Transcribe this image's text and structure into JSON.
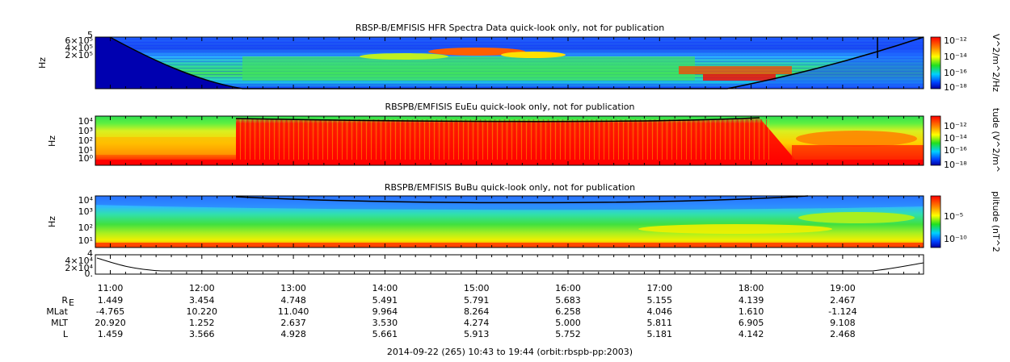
{
  "panels": [
    {
      "title": "RBSP-B/EMFISIS  HFR Spectra Data quick-look only, not for publication",
      "ylabel": "Hz",
      "yticks": [
        "6×10⁵",
        "4×10⁵",
        "2×10⁵"
      ],
      "top_tick": "5",
      "colorbar_label": "V^2/m^2/Hz",
      "colorbar_ticks": [
        "10⁻¹²",
        "10⁻¹⁴",
        "10⁻¹⁶",
        "10⁻¹⁸"
      ]
    },
    {
      "title": "RBSPB/EMFISIS  EuEu quick-look only, not for publication",
      "ylabel": "Hz",
      "yticks": [
        "10⁴",
        "10³",
        "10²",
        "10¹",
        "10⁰"
      ],
      "colorbar_label": "tude (V^2/m^",
      "colorbar_ticks": [
        "10⁻¹²",
        "10⁻¹⁴",
        "10⁻¹⁶",
        "10⁻¹⁸"
      ]
    },
    {
      "title": "RBSPB/EMFISIS  BuBu quick-look only, not for publication",
      "ylabel": "Hz",
      "yticks": [
        "10⁴",
        "10³",
        "10²",
        "10¹"
      ],
      "colorbar_label": "plitude (nT^2",
      "colorbar_ticks": [
        "10⁻⁵",
        "10⁻¹⁰"
      ]
    },
    {
      "yticks": [
        "4×10⁴",
        "2×10⁴",
        "0."
      ],
      "top_tick": "4"
    }
  ],
  "chart_data": {
    "type": "heatmap",
    "x_time_ticks": [
      "11:00",
      "12:00",
      "13:00",
      "14:00",
      "15:00",
      "16:00",
      "17:00",
      "18:00",
      "19:00"
    ],
    "ephemeris": {
      "labels": [
        "R",
        "MLat",
        "MLT",
        "L"
      ],
      "r_subscript": "E",
      "rows": [
        [
          "1.449",
          "3.454",
          "4.748",
          "5.491",
          "5.791",
          "5.683",
          "5.155",
          "4.139",
          "2.467"
        ],
        [
          "-4.765",
          "10.220",
          "11.040",
          "9.964",
          "8.264",
          "6.258",
          "4.046",
          "1.610",
          "-1.124"
        ],
        [
          "20.920",
          "1.252",
          "2.637",
          "3.530",
          "4.274",
          "5.000",
          "5.811",
          "6.905",
          "9.108"
        ],
        [
          "1.459",
          "3.566",
          "4.928",
          "5.661",
          "5.913",
          "5.752",
          "5.181",
          "4.142",
          "2.468"
        ]
      ]
    },
    "footer": "2014-09-22 (265) 10:43 to 19:44 (orbit:rbspb-pp:2003)"
  },
  "colors": {
    "red": "#ff2000",
    "yellow": "#ffff00",
    "green": "#20e020",
    "cyan": "#00c8ff",
    "blue": "#1840ff",
    "darkblue": "#0000c0"
  }
}
